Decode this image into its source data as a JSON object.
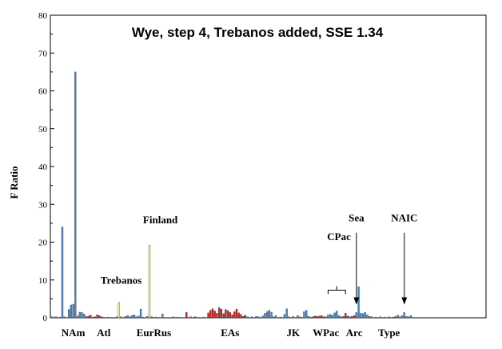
{
  "chart_data": {
    "type": "bar",
    "title": "Wye, step 4, Trebanos added, SSE 1.34",
    "xlabel": "",
    "ylabel": "F Ratio",
    "ylim": [
      0,
      80
    ],
    "yticks": [
      0,
      10,
      20,
      30,
      40,
      50,
      60,
      70,
      80
    ],
    "grid": false,
    "legend": "none",
    "colors": {
      "blue": "#4a86c8",
      "red": "#cc2222",
      "yellow": "#f5f07a",
      "axis": "#000000"
    },
    "n_bars": 200,
    "bars": [
      {
        "i": 0,
        "v": 0.3,
        "c": "blue"
      },
      {
        "i": 1,
        "v": 0.2,
        "c": "blue"
      },
      {
        "i": 2,
        "v": 0.3,
        "c": "blue"
      },
      {
        "i": 4,
        "v": 0.2,
        "c": "blue"
      },
      {
        "i": 5,
        "v": 24.0,
        "c": "blue"
      },
      {
        "i": 6,
        "v": 0.3,
        "c": "blue"
      },
      {
        "i": 8,
        "v": 2.2,
        "c": "blue"
      },
      {
        "i": 9,
        "v": 3.4,
        "c": "blue"
      },
      {
        "i": 10,
        "v": 3.6,
        "c": "blue"
      },
      {
        "i": 11,
        "v": 65.0,
        "c": "blue"
      },
      {
        "i": 12,
        "v": 0.5,
        "c": "blue"
      },
      {
        "i": 13,
        "v": 1.5,
        "c": "blue"
      },
      {
        "i": 14,
        "v": 1.4,
        "c": "blue"
      },
      {
        "i": 15,
        "v": 1.0,
        "c": "blue"
      },
      {
        "i": 16,
        "v": 0.4,
        "c": "blue"
      },
      {
        "i": 17,
        "v": 0.5,
        "c": "red"
      },
      {
        "i": 18,
        "v": 0.7,
        "c": "red"
      },
      {
        "i": 19,
        "v": 0.2,
        "c": "red"
      },
      {
        "i": 20,
        "v": 0.3,
        "c": "red"
      },
      {
        "i": 21,
        "v": 0.8,
        "c": "red"
      },
      {
        "i": 22,
        "v": 0.6,
        "c": "red"
      },
      {
        "i": 23,
        "v": 0.3,
        "c": "red"
      },
      {
        "i": 24,
        "v": 0.2,
        "c": "blue"
      },
      {
        "i": 26,
        "v": 0.2,
        "c": "blue"
      },
      {
        "i": 30,
        "v": 0.3,
        "c": "blue"
      },
      {
        "i": 31,
        "v": 4.1,
        "c": "yellow"
      },
      {
        "i": 32,
        "v": 0.3,
        "c": "blue"
      },
      {
        "i": 34,
        "v": 0.4,
        "c": "blue"
      },
      {
        "i": 35,
        "v": 0.6,
        "c": "blue"
      },
      {
        "i": 36,
        "v": 0.3,
        "c": "blue"
      },
      {
        "i": 37,
        "v": 0.6,
        "c": "blue"
      },
      {
        "i": 38,
        "v": 0.8,
        "c": "blue"
      },
      {
        "i": 39,
        "v": 0.3,
        "c": "blue"
      },
      {
        "i": 40,
        "v": 0.5,
        "c": "blue"
      },
      {
        "i": 41,
        "v": 2.3,
        "c": "blue"
      },
      {
        "i": 42,
        "v": 0.2,
        "c": "blue"
      },
      {
        "i": 44,
        "v": 0.4,
        "c": "blue"
      },
      {
        "i": 45,
        "v": 19.2,
        "c": "yellow"
      },
      {
        "i": 46,
        "v": 0.3,
        "c": "blue"
      },
      {
        "i": 48,
        "v": 0.2,
        "c": "blue"
      },
      {
        "i": 51,
        "v": 1.0,
        "c": "blue"
      },
      {
        "i": 56,
        "v": 0.3,
        "c": "blue"
      },
      {
        "i": 58,
        "v": 0.2,
        "c": "blue"
      },
      {
        "i": 62,
        "v": 1.4,
        "c": "red"
      },
      {
        "i": 64,
        "v": 0.3,
        "c": "blue"
      },
      {
        "i": 66,
        "v": 0.3,
        "c": "red"
      },
      {
        "i": 70,
        "v": 0.2,
        "c": "blue"
      },
      {
        "i": 72,
        "v": 1.3,
        "c": "red"
      },
      {
        "i": 73,
        "v": 2.0,
        "c": "red"
      },
      {
        "i": 74,
        "v": 2.4,
        "c": "red"
      },
      {
        "i": 75,
        "v": 1.8,
        "c": "red"
      },
      {
        "i": 76,
        "v": 1.2,
        "c": "red"
      },
      {
        "i": 77,
        "v": 2.7,
        "c": "red"
      },
      {
        "i": 78,
        "v": 2.3,
        "c": "red"
      },
      {
        "i": 79,
        "v": 1.1,
        "c": "red"
      },
      {
        "i": 80,
        "v": 2.2,
        "c": "red"
      },
      {
        "i": 81,
        "v": 1.9,
        "c": "red"
      },
      {
        "i": 82,
        "v": 1.4,
        "c": "red"
      },
      {
        "i": 83,
        "v": 0.8,
        "c": "red"
      },
      {
        "i": 84,
        "v": 1.6,
        "c": "red"
      },
      {
        "i": 85,
        "v": 2.3,
        "c": "red"
      },
      {
        "i": 86,
        "v": 1.3,
        "c": "red"
      },
      {
        "i": 87,
        "v": 0.9,
        "c": "red"
      },
      {
        "i": 88,
        "v": 0.4,
        "c": "red"
      },
      {
        "i": 89,
        "v": 0.7,
        "c": "red"
      },
      {
        "i": 90,
        "v": 0.3,
        "c": "blue"
      },
      {
        "i": 92,
        "v": 0.3,
        "c": "blue"
      },
      {
        "i": 94,
        "v": 0.4,
        "c": "blue"
      },
      {
        "i": 95,
        "v": 0.3,
        "c": "blue"
      },
      {
        "i": 97,
        "v": 0.5,
        "c": "blue"
      },
      {
        "i": 98,
        "v": 1.2,
        "c": "blue"
      },
      {
        "i": 99,
        "v": 1.6,
        "c": "blue"
      },
      {
        "i": 100,
        "v": 2.0,
        "c": "blue"
      },
      {
        "i": 101,
        "v": 1.5,
        "c": "blue"
      },
      {
        "i": 102,
        "v": 0.3,
        "c": "blue"
      },
      {
        "i": 103,
        "v": 0.6,
        "c": "blue"
      },
      {
        "i": 105,
        "v": 0.2,
        "c": "blue"
      },
      {
        "i": 107,
        "v": 0.9,
        "c": "blue"
      },
      {
        "i": 108,
        "v": 2.4,
        "c": "blue"
      },
      {
        "i": 109,
        "v": 0.3,
        "c": "blue"
      },
      {
        "i": 111,
        "v": 0.4,
        "c": "blue"
      },
      {
        "i": 113,
        "v": 0.6,
        "c": "blue"
      },
      {
        "i": 114,
        "v": 0.3,
        "c": "blue"
      },
      {
        "i": 116,
        "v": 1.6,
        "c": "blue"
      },
      {
        "i": 117,
        "v": 2.0,
        "c": "blue"
      },
      {
        "i": 118,
        "v": 0.4,
        "c": "blue"
      },
      {
        "i": 119,
        "v": 0.2,
        "c": "blue"
      },
      {
        "i": 120,
        "v": 0.3,
        "c": "red"
      },
      {
        "i": 121,
        "v": 0.5,
        "c": "red"
      },
      {
        "i": 122,
        "v": 0.4,
        "c": "red"
      },
      {
        "i": 123,
        "v": 0.5,
        "c": "red"
      },
      {
        "i": 124,
        "v": 0.6,
        "c": "red"
      },
      {
        "i": 125,
        "v": 0.3,
        "c": "red"
      },
      {
        "i": 126,
        "v": 0.3,
        "c": "blue"
      },
      {
        "i": 127,
        "v": 0.8,
        "c": "blue"
      },
      {
        "i": 128,
        "v": 0.9,
        "c": "blue"
      },
      {
        "i": 129,
        "v": 0.7,
        "c": "blue"
      },
      {
        "i": 130,
        "v": 1.3,
        "c": "blue"
      },
      {
        "i": 131,
        "v": 1.8,
        "c": "blue"
      },
      {
        "i": 132,
        "v": 0.6,
        "c": "blue"
      },
      {
        "i": 133,
        "v": 0.3,
        "c": "blue"
      },
      {
        "i": 134,
        "v": 0.4,
        "c": "red"
      },
      {
        "i": 135,
        "v": 1.2,
        "c": "red"
      },
      {
        "i": 136,
        "v": 0.5,
        "c": "red"
      },
      {
        "i": 137,
        "v": 0.3,
        "c": "blue"
      },
      {
        "i": 138,
        "v": 0.4,
        "c": "red"
      },
      {
        "i": 139,
        "v": 0.6,
        "c": "red"
      },
      {
        "i": 140,
        "v": 1.4,
        "c": "blue"
      },
      {
        "i": 141,
        "v": 8.2,
        "c": "blue"
      },
      {
        "i": 142,
        "v": 1.2,
        "c": "blue"
      },
      {
        "i": 143,
        "v": 1.1,
        "c": "blue"
      },
      {
        "i": 144,
        "v": 1.4,
        "c": "blue"
      },
      {
        "i": 145,
        "v": 0.8,
        "c": "blue"
      },
      {
        "i": 146,
        "v": 0.4,
        "c": "blue"
      },
      {
        "i": 147,
        "v": 0.3,
        "c": "blue"
      },
      {
        "i": 149,
        "v": 0.2,
        "c": "blue"
      },
      {
        "i": 151,
        "v": 0.3,
        "c": "blue"
      },
      {
        "i": 153,
        "v": 0.2,
        "c": "blue"
      },
      {
        "i": 155,
        "v": 0.3,
        "c": "blue"
      },
      {
        "i": 157,
        "v": 0.2,
        "c": "red"
      },
      {
        "i": 158,
        "v": 0.4,
        "c": "blue"
      },
      {
        "i": 159,
        "v": 0.7,
        "c": "blue"
      },
      {
        "i": 160,
        "v": 0.3,
        "c": "blue"
      },
      {
        "i": 161,
        "v": 0.6,
        "c": "blue"
      },
      {
        "i": 162,
        "v": 1.4,
        "c": "blue"
      },
      {
        "i": 163,
        "v": 0.4,
        "c": "blue"
      },
      {
        "i": 164,
        "v": 0.3,
        "c": "blue"
      },
      {
        "i": 165,
        "v": 0.6,
        "c": "blue"
      }
    ],
    "region_labels": [
      {
        "label": "NAm",
        "at": 10
      },
      {
        "label": "Atl",
        "at": 24
      },
      {
        "label": "Eur",
        "at": 43
      },
      {
        "label": "Rus",
        "at": 51
      },
      {
        "label": "EAs",
        "at": 82
      },
      {
        "label": "JK",
        "at": 111
      },
      {
        "label": "WPac",
        "at": 126
      },
      {
        "label": "Arc",
        "at": 139
      },
      {
        "label": "Type",
        "at": 155
      }
    ],
    "annotations": [
      {
        "label": "Trebanos",
        "text_at": 32,
        "text_y": 9
      },
      {
        "label": "Finland",
        "text_at": 50,
        "text_y": 25
      },
      {
        "label": "CPac",
        "text_at": 132,
        "text_y": 20.5,
        "bracket": [
          127,
          135
        ],
        "bracket_y": 7.3
      },
      {
        "label": "Sea",
        "text_at": 140,
        "text_y": 25.5,
        "arrow_at": 140,
        "arrow_from": 22.5,
        "arrow_to": 3.5
      },
      {
        "label": "NAIC",
        "text_at": 162,
        "text_y": 25.5,
        "arrow_at": 162,
        "arrow_from": 22.5,
        "arrow_to": 3.5
      }
    ]
  }
}
